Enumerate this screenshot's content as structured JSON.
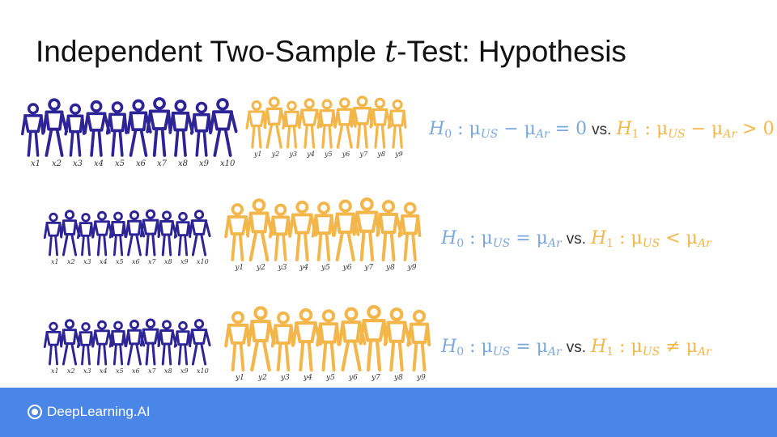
{
  "title": {
    "prefix": "Independent Two-Sample ",
    "variable": "t",
    "suffix": "-Test: Hypothesis"
  },
  "colors": {
    "group_x": "#2e2496",
    "group_y": "#f3b64a",
    "h0": "#7aa7dc",
    "h1": "#f3b64a"
  },
  "rows": [
    {
      "x_labels": [
        "x1",
        "x2",
        "x3",
        "x4",
        "x5",
        "x6",
        "x7",
        "x8",
        "x9",
        "x10"
      ],
      "y_labels": [
        "y1",
        "y2",
        "y3",
        "y4",
        "y5",
        "y6",
        "y7",
        "y8",
        "y9"
      ],
      "h0": {
        "name": "H",
        "sub": "0",
        "expr": " : μ",
        "sub1": "US",
        "mid": " − μ",
        "sub2": "Ar",
        "rel": " = 0"
      },
      "vs": "vs.",
      "h1": {
        "name": "H",
        "sub": "1",
        "expr": " : μ",
        "sub1": "US",
        "mid": " − μ",
        "sub2": "Ar",
        "rel": " > 0"
      }
    },
    {
      "x_labels": [
        "x1",
        "x2",
        "x3",
        "x4",
        "x5",
        "x6",
        "x7",
        "x8",
        "x9",
        "x10"
      ],
      "y_labels": [
        "y1",
        "y2",
        "y3",
        "y4",
        "y5",
        "y6",
        "y7",
        "y8",
        "y9"
      ],
      "h0": {
        "name": "H",
        "sub": "0",
        "expr": " : μ",
        "sub1": "US",
        "mid": " = μ",
        "sub2": "Ar",
        "rel": ""
      },
      "vs": "vs.",
      "h1": {
        "name": "H",
        "sub": "1",
        "expr": " : μ",
        "sub1": "US",
        "mid": " < μ",
        "sub2": "Ar",
        "rel": ""
      }
    },
    {
      "x_labels": [
        "x1",
        "x2",
        "x3",
        "x4",
        "x5",
        "x6",
        "x7",
        "x8",
        "x9",
        "x10"
      ],
      "y_labels": [
        "y1",
        "y2",
        "y3",
        "y4",
        "y5",
        "y6",
        "y7",
        "y8",
        "y9"
      ],
      "h0": {
        "name": "H",
        "sub": "0",
        "expr": " : μ",
        "sub1": "US",
        "mid": " = μ",
        "sub2": "Ar",
        "rel": ""
      },
      "vs": "vs.",
      "h1": {
        "name": "H",
        "sub": "1",
        "expr": " : μ",
        "sub1": "US",
        "mid": " ≠ μ",
        "sub2": "Ar",
        "rel": ""
      }
    }
  ],
  "footer": {
    "brand": "DeepLearning.AI",
    "logo_icon": "deeplearning-ai-logo-icon"
  }
}
